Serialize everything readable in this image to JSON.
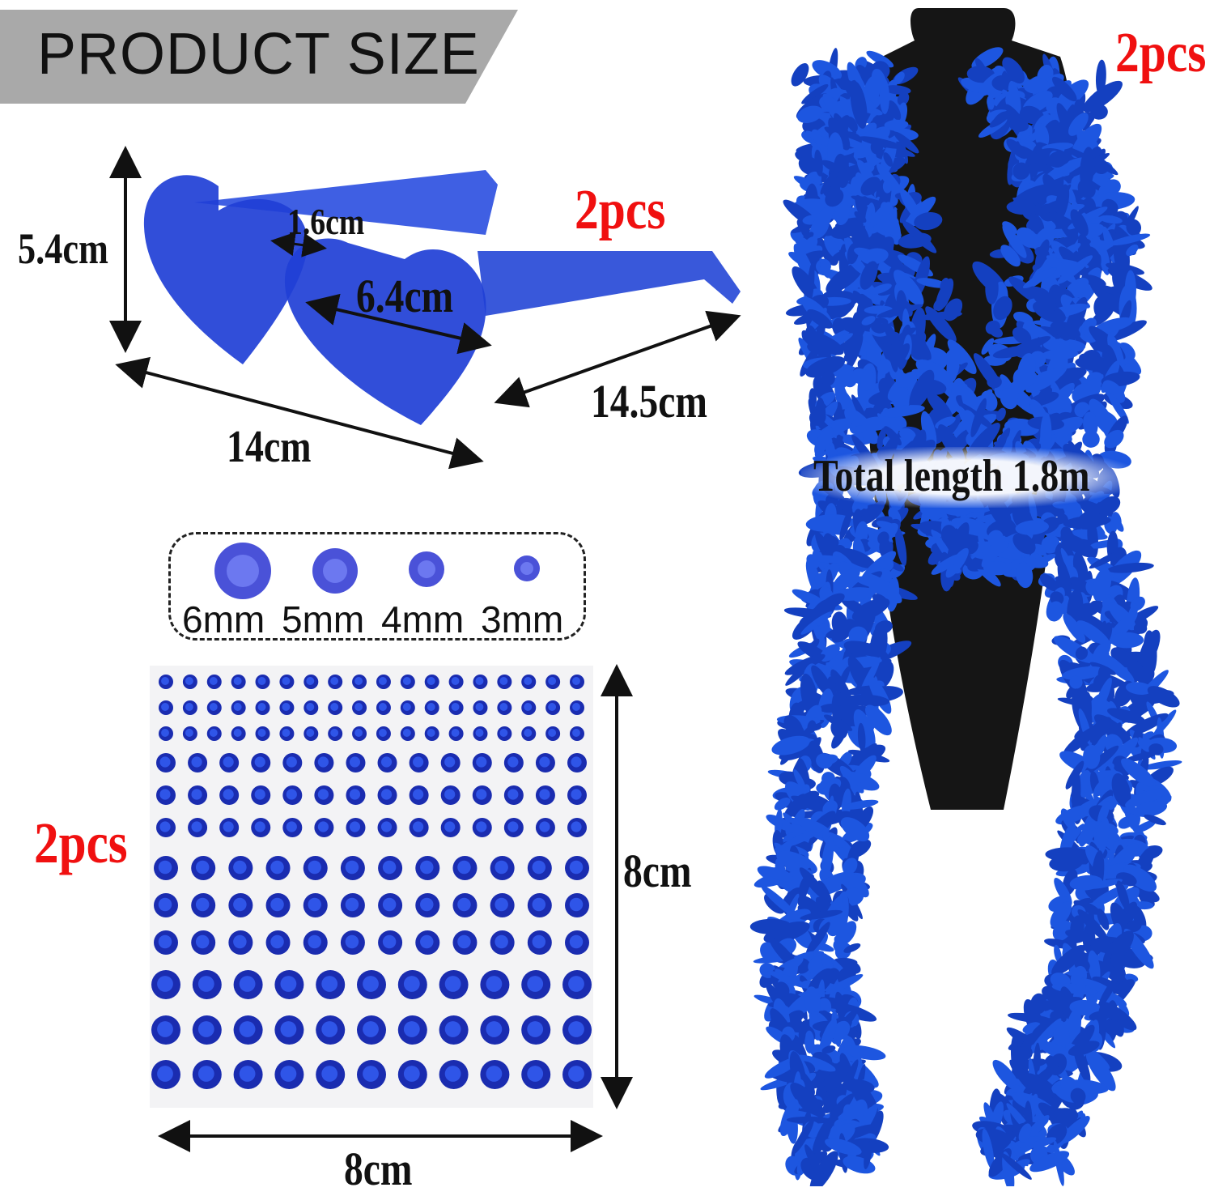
{
  "header": {
    "title": "PRODUCT SIZE"
  },
  "glasses": {
    "height_label": "5.4cm",
    "bridge_label": "1.6cm",
    "lens_label": "6.4cm",
    "width_label": "14cm",
    "temple_label": "14.5cm",
    "quantity_label": "2pcs",
    "color": "#1f3fd6"
  },
  "rhinestones": {
    "sizes": [
      "6mm",
      "5mm",
      "4mm",
      "3mm"
    ],
    "quantity_label": "2pcs",
    "height_label": "8cm",
    "width_label": "8cm",
    "color": "#1a2fb8"
  },
  "boa": {
    "length_label": "Total length 1.8m",
    "quantity_label": "2pcs",
    "color": "#1d56e0"
  },
  "colors": {
    "banner": "#a9a9a9",
    "accent_red": "#f01010"
  }
}
